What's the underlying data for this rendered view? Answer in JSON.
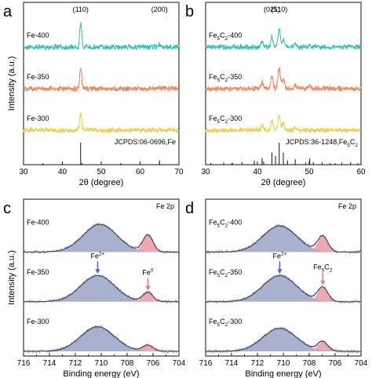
{
  "colors": {
    "cyan": "#33bdb8",
    "orange": "#e8865f",
    "yellow": "#e8cf4c",
    "blue_fill": "#9aa3c9",
    "red_fill": "#e99aa6",
    "fit_line": "#3a3a55",
    "raw_line": "#8a8a8a",
    "blue_arrow": "#5b63b3",
    "red_arrow": "#e07a86"
  },
  "chart_data": [
    {
      "letter": "a",
      "type": "line",
      "xlabel": "2θ (degree)",
      "ylabel": "Intensity (a.u.)",
      "xlim": [
        30,
        70
      ],
      "xticks": [
        "30",
        "40",
        "50",
        "60",
        "70"
      ],
      "peak_labels": [
        {
          "text": "(110)",
          "x": 44.7
        },
        {
          "text": "(200)",
          "x": 65.0
        }
      ],
      "series": [
        {
          "name": "Fe-400",
          "color": "cyan",
          "peaks": [
            {
              "x": 44.7,
              "h": 1.0,
              "w": 0.35
            },
            {
              "x": 65.0,
              "h": 0.08,
              "w": 0.5
            }
          ]
        },
        {
          "name": "Fe-350",
          "color": "orange",
          "peaks": [
            {
              "x": 44.7,
              "h": 0.85,
              "w": 0.35
            },
            {
              "x": 65.0,
              "h": 0.06,
              "w": 0.5
            }
          ]
        },
        {
          "name": "Fe-300",
          "color": "yellow",
          "peaks": [
            {
              "x": 44.7,
              "h": 0.7,
              "w": 0.35
            },
            {
              "x": 65.0,
              "h": 0.05,
              "w": 0.5
            }
          ]
        }
      ],
      "reference": {
        "label": "JCPDS:06-0696,Fe",
        "lines": [
          {
            "x": 44.7,
            "h": 1.0
          },
          {
            "x": 65.0,
            "h": 0.2
          }
        ]
      }
    },
    {
      "letter": "b",
      "type": "line",
      "xlabel": "2θ (degree)",
      "ylabel": "",
      "xlim": [
        30,
        60
      ],
      "xticks": [
        "30",
        "40",
        "50",
        "60"
      ],
      "peak_labels": [
        {
          "text": "(021)",
          "x": 42.8
        },
        {
          "text": "(510)",
          "x": 44.2
        }
      ],
      "series": [
        {
          "name": "Fe5C2-400",
          "color": "cyan",
          "peaks": [
            {
              "x": 40.9,
              "h": 0.25,
              "w": 0.3
            },
            {
              "x": 42.8,
              "h": 0.45,
              "w": 0.3
            },
            {
              "x": 44.2,
              "h": 0.7,
              "w": 0.35
            },
            {
              "x": 45.0,
              "h": 0.35,
              "w": 0.3
            },
            {
              "x": 47.3,
              "h": 0.15,
              "w": 0.3
            },
            {
              "x": 50.1,
              "h": 0.1,
              "w": 0.3
            }
          ]
        },
        {
          "name": "Fe5C2-350",
          "color": "orange",
          "peaks": [
            {
              "x": 40.9,
              "h": 0.3,
              "w": 0.3
            },
            {
              "x": 42.8,
              "h": 0.55,
              "w": 0.3
            },
            {
              "x": 44.2,
              "h": 0.85,
              "w": 0.35
            },
            {
              "x": 45.0,
              "h": 0.4,
              "w": 0.3
            },
            {
              "x": 47.3,
              "h": 0.15,
              "w": 0.3
            },
            {
              "x": 50.1,
              "h": 0.12,
              "w": 0.3
            }
          ]
        },
        {
          "name": "Fe5C2-300",
          "color": "yellow",
          "peaks": [
            {
              "x": 40.9,
              "h": 0.2,
              "w": 0.3
            },
            {
              "x": 42.8,
              "h": 0.4,
              "w": 0.3
            },
            {
              "x": 44.2,
              "h": 0.6,
              "w": 0.35
            },
            {
              "x": 45.0,
              "h": 0.3,
              "w": 0.3
            },
            {
              "x": 47.3,
              "h": 0.1,
              "w": 0.3
            }
          ]
        }
      ],
      "reference": {
        "label": "JCPDS:36-1248,Fe5C2",
        "lines": [
          {
            "x": 31.0,
            "h": 0.08
          },
          {
            "x": 33.5,
            "h": 0.1
          },
          {
            "x": 35.2,
            "h": 0.08
          },
          {
            "x": 37.0,
            "h": 0.12
          },
          {
            "x": 39.4,
            "h": 0.18
          },
          {
            "x": 40.9,
            "h": 0.3
          },
          {
            "x": 41.2,
            "h": 0.15
          },
          {
            "x": 42.8,
            "h": 0.55
          },
          {
            "x": 43.5,
            "h": 0.4
          },
          {
            "x": 44.2,
            "h": 1.0
          },
          {
            "x": 45.0,
            "h": 0.55
          },
          {
            "x": 45.8,
            "h": 0.2
          },
          {
            "x": 47.3,
            "h": 0.25
          },
          {
            "x": 49.3,
            "h": 0.1
          },
          {
            "x": 50.1,
            "h": 0.28
          },
          {
            "x": 50.8,
            "h": 0.12
          },
          {
            "x": 52.5,
            "h": 0.1
          },
          {
            "x": 54.0,
            "h": 0.08
          },
          {
            "x": 56.3,
            "h": 0.1
          },
          {
            "x": 58.0,
            "h": 0.12
          },
          {
            "x": 59.4,
            "h": 0.08
          }
        ]
      }
    },
    {
      "letter": "c",
      "type": "area",
      "xlabel": "Binding energy (eV)",
      "ylabel": "Intensity (a.u.)",
      "xlim": [
        717,
        704
      ],
      "xticks": [
        "716",
        "714",
        "712",
        "710",
        "708",
        "706",
        "704"
      ],
      "corner_label": "Fe 2p",
      "series": [
        {
          "name": "Fe-400",
          "components": [
            {
              "role": "Fe2+",
              "x": 710.6,
              "h": 0.9,
              "w": 2.0,
              "color": "blue_fill"
            },
            {
              "role": "Fe0",
              "x": 706.6,
              "h": 0.55,
              "w": 0.6,
              "color": "red_fill"
            }
          ]
        },
        {
          "name": "Fe-350",
          "components": [
            {
              "role": "Fe2+",
              "x": 710.8,
              "h": 0.85,
              "w": 2.0,
              "color": "blue_fill"
            },
            {
              "role": "Fe0",
              "x": 706.6,
              "h": 0.3,
              "w": 0.6,
              "color": "red_fill"
            }
          ]
        },
        {
          "name": "Fe-300",
          "components": [
            {
              "role": "Fe2+",
              "x": 710.8,
              "h": 0.8,
              "w": 2.0,
              "color": "blue_fill"
            },
            {
              "role": "Fe0",
              "x": 706.6,
              "h": 0.2,
              "w": 0.6,
              "color": "red_fill"
            }
          ]
        }
      ],
      "annotations": [
        {
          "series": 1,
          "component": 0,
          "color": "blue_arrow"
        },
        {
          "series": 1,
          "component": 1,
          "color": "red_arrow"
        }
      ]
    },
    {
      "letter": "d",
      "type": "area",
      "xlabel": "Binding energy (eV)",
      "ylabel": "",
      "xlim": [
        717,
        704
      ],
      "xticks": [
        "716",
        "714",
        "712",
        "710",
        "708",
        "706",
        "704"
      ],
      "corner_label": "Fe 2p",
      "series": [
        {
          "name": "Fe5C2-400",
          "components": [
            {
              "role": "Fe2+",
              "x": 710.8,
              "h": 0.85,
              "w": 2.0,
              "color": "blue_fill"
            },
            {
              "role": "Fe5C2",
              "x": 707.2,
              "h": 0.5,
              "w": 0.6,
              "color": "red_fill"
            }
          ]
        },
        {
          "name": "Fe5C2-350",
          "components": [
            {
              "role": "Fe2+",
              "x": 710.8,
              "h": 0.85,
              "w": 2.0,
              "color": "blue_fill"
            },
            {
              "role": "Fe5C2",
              "x": 707.2,
              "h": 0.45,
              "w": 0.6,
              "color": "red_fill"
            }
          ]
        },
        {
          "name": "Fe5C2-300",
          "components": [
            {
              "role": "Fe2+",
              "x": 710.8,
              "h": 0.75,
              "w": 2.0,
              "color": "blue_fill"
            },
            {
              "role": "Fe5C2",
              "x": 707.2,
              "h": 0.3,
              "w": 0.6,
              "color": "red_fill"
            }
          ]
        }
      ],
      "annotations": [
        {
          "series": 1,
          "component": 0,
          "color": "blue_arrow"
        },
        {
          "series": 1,
          "component": 1,
          "color": "red_arrow"
        }
      ]
    }
  ]
}
